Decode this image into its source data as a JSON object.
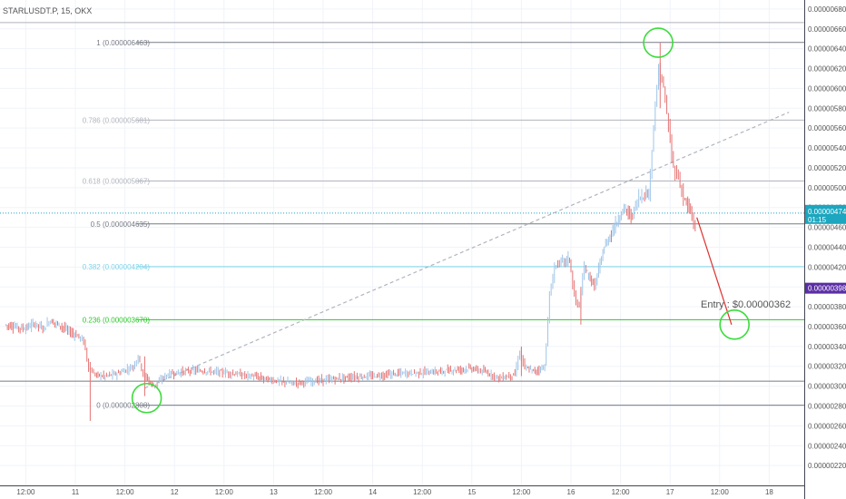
{
  "header": {
    "symbol_line": "STARLUSDT.P, 15, OKX"
  },
  "chart_data": {
    "type": "candlestick",
    "ylim": [
      2.1e-06,
      6.9e-06
    ],
    "price_axis_ticks": [
      "0.000006800",
      "0.000006600",
      "0.000006400",
      "0.000006200",
      "0.000006000",
      "0.000005800",
      "0.000005600",
      "0.000005400",
      "0.000005200",
      "0.000005000",
      "0.000004800",
      "0.000004600",
      "0.000004400",
      "0.000004200",
      "0.000004000",
      "0.000003800",
      "0.000003600",
      "0.000003400",
      "0.000003200",
      "0.000003000",
      "0.000002800",
      "0.000002600",
      "0.000002400",
      "0.000002200"
    ],
    "time_ticks": [
      {
        "label": "12:00",
        "day": 10.5
      },
      {
        "label": "11",
        "day": 11.0
      },
      {
        "label": "12:00",
        "day": 11.5
      },
      {
        "label": "12",
        "day": 12.0
      },
      {
        "label": "12:00",
        "day": 12.5
      },
      {
        "label": "13",
        "day": 13.0
      },
      {
        "label": "12:00",
        "day": 13.5
      },
      {
        "label": "14",
        "day": 14.0
      },
      {
        "label": "12:00",
        "day": 14.5
      },
      {
        "label": "15",
        "day": 15.0
      },
      {
        "label": "12:00",
        "day": 15.5
      },
      {
        "label": "16",
        "day": 16.0
      },
      {
        "label": "12:00",
        "day": 16.5
      },
      {
        "label": "17",
        "day": 17.0
      },
      {
        "label": "12:00",
        "day": 17.5
      },
      {
        "label": "18",
        "day": 18.0
      }
    ],
    "fib_levels": [
      {
        "label": "1 (0.000006463)",
        "price": 6.463e-06,
        "color": "#787b86"
      },
      {
        "label": "0.786 (0.000005681)",
        "price": 5.681e-06,
        "color": "#b2b5be"
      },
      {
        "label": "0.618 (0.000005067)",
        "price": 5.067e-06,
        "color": "#b2b5be"
      },
      {
        "label": "0.5 (0.000004635)",
        "price": 4.635e-06,
        "color": "#787b86"
      },
      {
        "label": "0.382 (0.000004204)",
        "price": 4.204e-06,
        "color": "#7fd3e8"
      },
      {
        "label": "0.236 (0.000003670)",
        "price": 3.67e-06,
        "color": "#28c828"
      },
      {
        "label": "0 (0.000002808)",
        "price": 2.808e-06,
        "color": "#787b86"
      }
    ],
    "extra_hlines": [
      {
        "price": 6.663e-06,
        "color": "#b2b5be"
      },
      {
        "price": 3.05e-06,
        "color": "#787b86"
      }
    ],
    "current_price": {
      "label": "0.000004744",
      "countdown": "01:15",
      "price": 4.744e-06,
      "color": "#1ca6bf"
    },
    "marker_price": {
      "label": "0.000003987",
      "price": 3.987e-06,
      "color": "#5b2ea6"
    },
    "annotation": "Entry : $0.00000362",
    "path_points": [
      {
        "day": 10.3,
        "p": 3.62e-06
      },
      {
        "day": 10.4,
        "p": 3.6e-06
      },
      {
        "day": 10.5,
        "p": 3.58e-06
      },
      {
        "day": 10.6,
        "p": 3.63e-06
      },
      {
        "day": 10.7,
        "p": 3.58e-06
      },
      {
        "day": 10.75,
        "p": 3.66e-06
      },
      {
        "day": 10.85,
        "p": 3.62e-06
      },
      {
        "day": 10.95,
        "p": 3.55e-06
      },
      {
        "day": 11.05,
        "p": 3.5e-06
      },
      {
        "day": 11.1,
        "p": 3.45e-06
      },
      {
        "day": 11.15,
        "p": 3.2e-06
      },
      {
        "day": 11.2,
        "p": 3.12e-06
      },
      {
        "day": 11.3,
        "p": 3.1e-06
      },
      {
        "day": 11.45,
        "p": 3.13e-06
      },
      {
        "day": 11.6,
        "p": 3.2e-06
      },
      {
        "day": 11.65,
        "p": 3.3e-06
      },
      {
        "day": 11.7,
        "p": 3.12e-06
      },
      {
        "day": 11.8,
        "p": 3e-06
      },
      {
        "day": 11.95,
        "p": 3.12e-06
      },
      {
        "day": 12.2,
        "p": 3.16e-06
      },
      {
        "day": 12.5,
        "p": 3.14e-06
      },
      {
        "day": 12.8,
        "p": 3.1e-06
      },
      {
        "day": 13.0,
        "p": 3.06e-06
      },
      {
        "day": 13.2,
        "p": 3.03e-06
      },
      {
        "day": 13.5,
        "p": 3.06e-06
      },
      {
        "day": 13.8,
        "p": 3.09e-06
      },
      {
        "day": 14.0,
        "p": 3.1e-06
      },
      {
        "day": 14.3,
        "p": 3.13e-06
      },
      {
        "day": 14.6,
        "p": 3.14e-06
      },
      {
        "day": 14.8,
        "p": 3.16e-06
      },
      {
        "day": 15.0,
        "p": 3.18e-06
      },
      {
        "day": 15.15,
        "p": 3.14e-06
      },
      {
        "day": 15.3,
        "p": 3.08e-06
      },
      {
        "day": 15.45,
        "p": 3.12e-06
      },
      {
        "day": 15.5,
        "p": 3.35e-06
      },
      {
        "day": 15.55,
        "p": 3.18e-06
      },
      {
        "day": 15.65,
        "p": 3.15e-06
      },
      {
        "day": 15.75,
        "p": 3.2e-06
      },
      {
        "day": 15.8,
        "p": 3.9e-06
      },
      {
        "day": 15.85,
        "p": 4.2e-06
      },
      {
        "day": 15.9,
        "p": 4.25e-06
      },
      {
        "day": 16.0,
        "p": 4.28e-06
      },
      {
        "day": 16.05,
        "p": 3.9e-06
      },
      {
        "day": 16.1,
        "p": 3.8e-06
      },
      {
        "day": 16.15,
        "p": 4.2e-06
      },
      {
        "day": 16.25,
        "p": 4e-06
      },
      {
        "day": 16.35,
        "p": 4.4e-06
      },
      {
        "day": 16.45,
        "p": 4.6e-06
      },
      {
        "day": 16.55,
        "p": 4.8e-06
      },
      {
        "day": 16.62,
        "p": 4.7e-06
      },
      {
        "day": 16.7,
        "p": 4.9e-06
      },
      {
        "day": 16.8,
        "p": 4.95e-06
      },
      {
        "day": 16.85,
        "p": 5.6e-06
      },
      {
        "day": 16.9,
        "p": 6.2e-06
      },
      {
        "day": 16.95,
        "p": 6e-06
      },
      {
        "day": 17.0,
        "p": 5.6e-06
      },
      {
        "day": 17.05,
        "p": 5.2e-06
      },
      {
        "day": 17.1,
        "p": 5.1e-06
      },
      {
        "day": 17.15,
        "p": 4.9e-06
      },
      {
        "day": 17.22,
        "p": 4.75e-06
      },
      {
        "day": 17.27,
        "p": 4.6e-06
      }
    ],
    "entry_projection": [
      {
        "day": 17.27,
        "p": 4.7e-06
      },
      {
        "day": 17.62,
        "p": 3.62e-06
      }
    ],
    "trend_line": [
      {
        "day": 11.7,
        "p": 2.98e-06
      },
      {
        "day": 18.2,
        "p": 5.76e-06
      }
    ],
    "circles": [
      {
        "day": 11.72,
        "p": 2.88e-06
      },
      {
        "day": 16.88,
        "p": 6.46e-06
      },
      {
        "day": 17.65,
        "p": 3.62e-06
      }
    ]
  }
}
